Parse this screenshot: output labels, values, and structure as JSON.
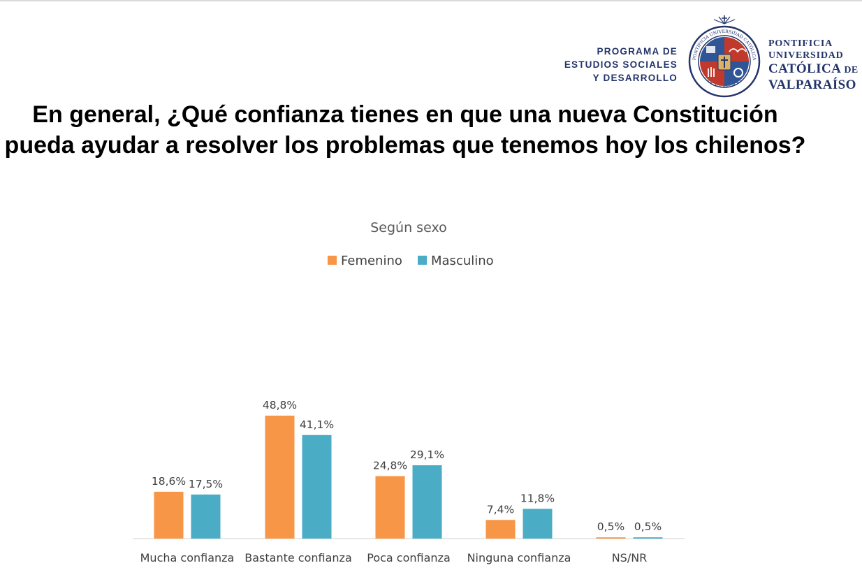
{
  "header": {
    "program_lines": [
      "PROGRAMA DE",
      "ESTUDIOS SOCIALES",
      "Y DESARROLLO"
    ],
    "university_line1": "PONTIFICIA",
    "university_line2": "UNIVERSIDAD",
    "university_line3_main": "CATÓLICA",
    "university_line3_de": "DE",
    "university_line4": "VALPARAÍSO",
    "seal_ring_text_top": "PONTIFICIA UNIVERSIDAD CATÓLICA",
    "seal_ring_text_bottom": "DE VALPARAÍSO"
  },
  "question": "En general, ¿Qué confianza tienes en que una nueva Constitución pueda ayudar a resolver los problemas que tenemos hoy los chilenos?",
  "colors": {
    "femenino": "#f79646",
    "masculino": "#4bacc6",
    "brand_navy": "#24346b",
    "brand_red": "#c0392b",
    "brand_blue": "#2f5597",
    "axis": "#d9d9d9",
    "label_text": "#404040",
    "subtitle_text": "#595959"
  },
  "chart_data": {
    "type": "bar",
    "title": "Según sexo",
    "legend_position": "top",
    "categories": [
      "Mucha confianza",
      "Bastante confianza",
      "Poca confianza",
      "Ninguna confianza",
      "NS/NR"
    ],
    "series": [
      {
        "name": "Femenino",
        "values": [
          18.6,
          48.8,
          24.8,
          7.4,
          0.5
        ],
        "labels": [
          "18,6%",
          "48,8%",
          "24,8%",
          "7,4%",
          "0,5%"
        ]
      },
      {
        "name": "Masculino",
        "values": [
          17.5,
          41.1,
          29.1,
          11.8,
          0.5
        ],
        "labels": [
          "17,5%",
          "41,1%",
          "29,1%",
          "11,8%",
          "0,5%"
        ]
      }
    ],
    "ylim": [
      0,
      48.8
    ],
    "grid": false
  }
}
